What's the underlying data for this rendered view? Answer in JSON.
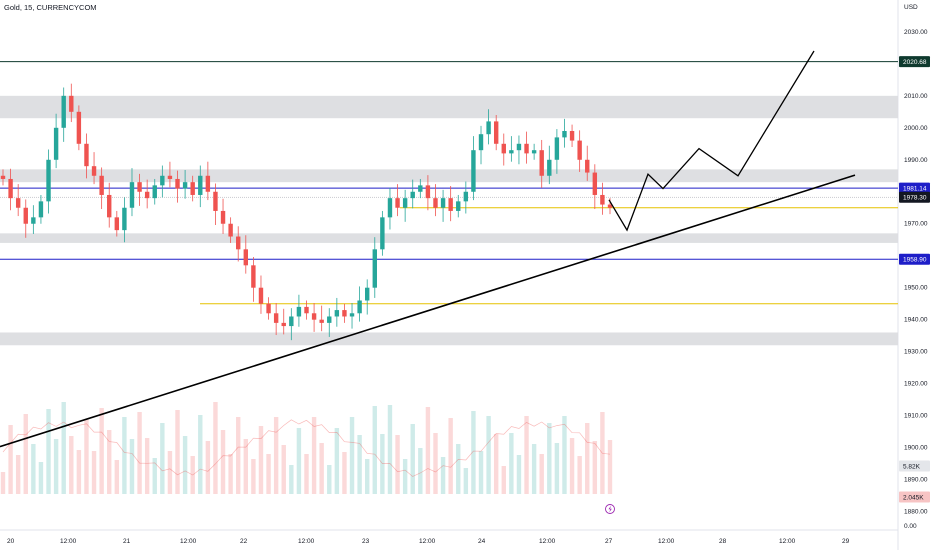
{
  "title": "Gold, 15, CURRENCYCOM",
  "chart_data": {
    "type": "candlestick",
    "currency_label": "USD",
    "y_ticks": [
      "2030.00",
      "2010.00",
      "2000.00",
      "1990.00",
      "1970.00",
      "1950.00",
      "1940.00",
      "1930.00",
      "1920.00",
      "1910.00",
      "1900.00",
      "1890.00",
      "1880.00"
    ],
    "volume_zero_label": "0.00",
    "x_ticks": [
      "20",
      "12:00",
      "21",
      "12:00",
      "22",
      "12:00",
      "23",
      "12:00",
      "24",
      "12:00",
      "27",
      "12:00",
      "28",
      "12:00",
      "29"
    ],
    "price_labels": [
      {
        "text": "2020.68",
        "bg": "#0f3a2e",
        "fg": "#ffffff",
        "value": 2020.68
      },
      {
        "text": "1981.14",
        "bg": "#1e1ec8",
        "fg": "#ffffff",
        "value": 1981.14
      },
      {
        "text": "1978.30",
        "bg": "#131722",
        "fg": "#ffffff",
        "value": 1978.3
      },
      {
        "text": "1958.90",
        "bg": "#1e1ec8",
        "fg": "#ffffff",
        "value": 1958.9
      }
    ],
    "volume_labels": [
      {
        "text": "5.82K",
        "bg": "#e4e6ea",
        "fg": "#131722"
      },
      {
        "text": "2.045K",
        "bg": "#f7c4c4",
        "fg": "#131722"
      }
    ],
    "zones": [
      {
        "y1": 2003,
        "y2": 2010
      },
      {
        "y1": 1983,
        "y2": 1987
      },
      {
        "y1": 1964,
        "y2": 1967
      },
      {
        "y1": 1932,
        "y2": 1936
      }
    ],
    "h_lines": [
      {
        "value": 2020.68,
        "color": "#0f3a2e"
      },
      {
        "value": 1981.14,
        "color": "#1e1ec8"
      },
      {
        "value": 1958.9,
        "color": "#1e1ec8"
      }
    ],
    "price_close": [
      1984,
      1978,
      1975,
      1970,
      1972,
      1977,
      1990,
      2000,
      2010,
      2005,
      1995,
      1988,
      1985,
      1979,
      1972,
      1968,
      1975,
      1983,
      1980,
      1978,
      1982,
      1985,
      1984,
      1981,
      1983,
      1979,
      1985,
      1980,
      1974,
      1970,
      1966,
      1962,
      1957,
      1950,
      1945,
      1942,
      1939,
      1938,
      1941,
      1944,
      1942,
      1940,
      1939,
      1941,
      1943,
      1941,
      1942,
      1946,
      1950,
      1962,
      1972,
      1978,
      1975,
      1978,
      1980,
      1982,
      1978,
      1975,
      1978,
      1974,
      1977,
      1980,
      1993,
      1998,
      2002,
      1995,
      1992,
      1993,
      1995,
      1992,
      1993,
      1985,
      1990,
      1997,
      1999,
      1996,
      1990,
      1986,
      1979,
      1976,
      1975
    ],
    "annotations": {
      "trendline": {
        "start": [
          0,
          1900.3
        ],
        "end": [
          855,
          1985.2
        ]
      },
      "zigzag": [
        [
          609,
          1977.5
        ],
        [
          627,
          1968
        ],
        [
          648,
          1985.5
        ],
        [
          663,
          1981
        ],
        [
          699,
          1993.5
        ],
        [
          738,
          1985
        ],
        [
          814,
          2024
        ]
      ],
      "yellow_lines": [
        {
          "x1": 400,
          "x2": 898,
          "value": 1975
        },
        {
          "x1": 200,
          "x2": 898,
          "value": 1945
        }
      ]
    }
  },
  "lightning_icon": "lightning-icon",
  "colors": {
    "up": "#26a69a",
    "down": "#ef5350",
    "zone": "#dcdde0",
    "yellow": "#e6c200"
  }
}
